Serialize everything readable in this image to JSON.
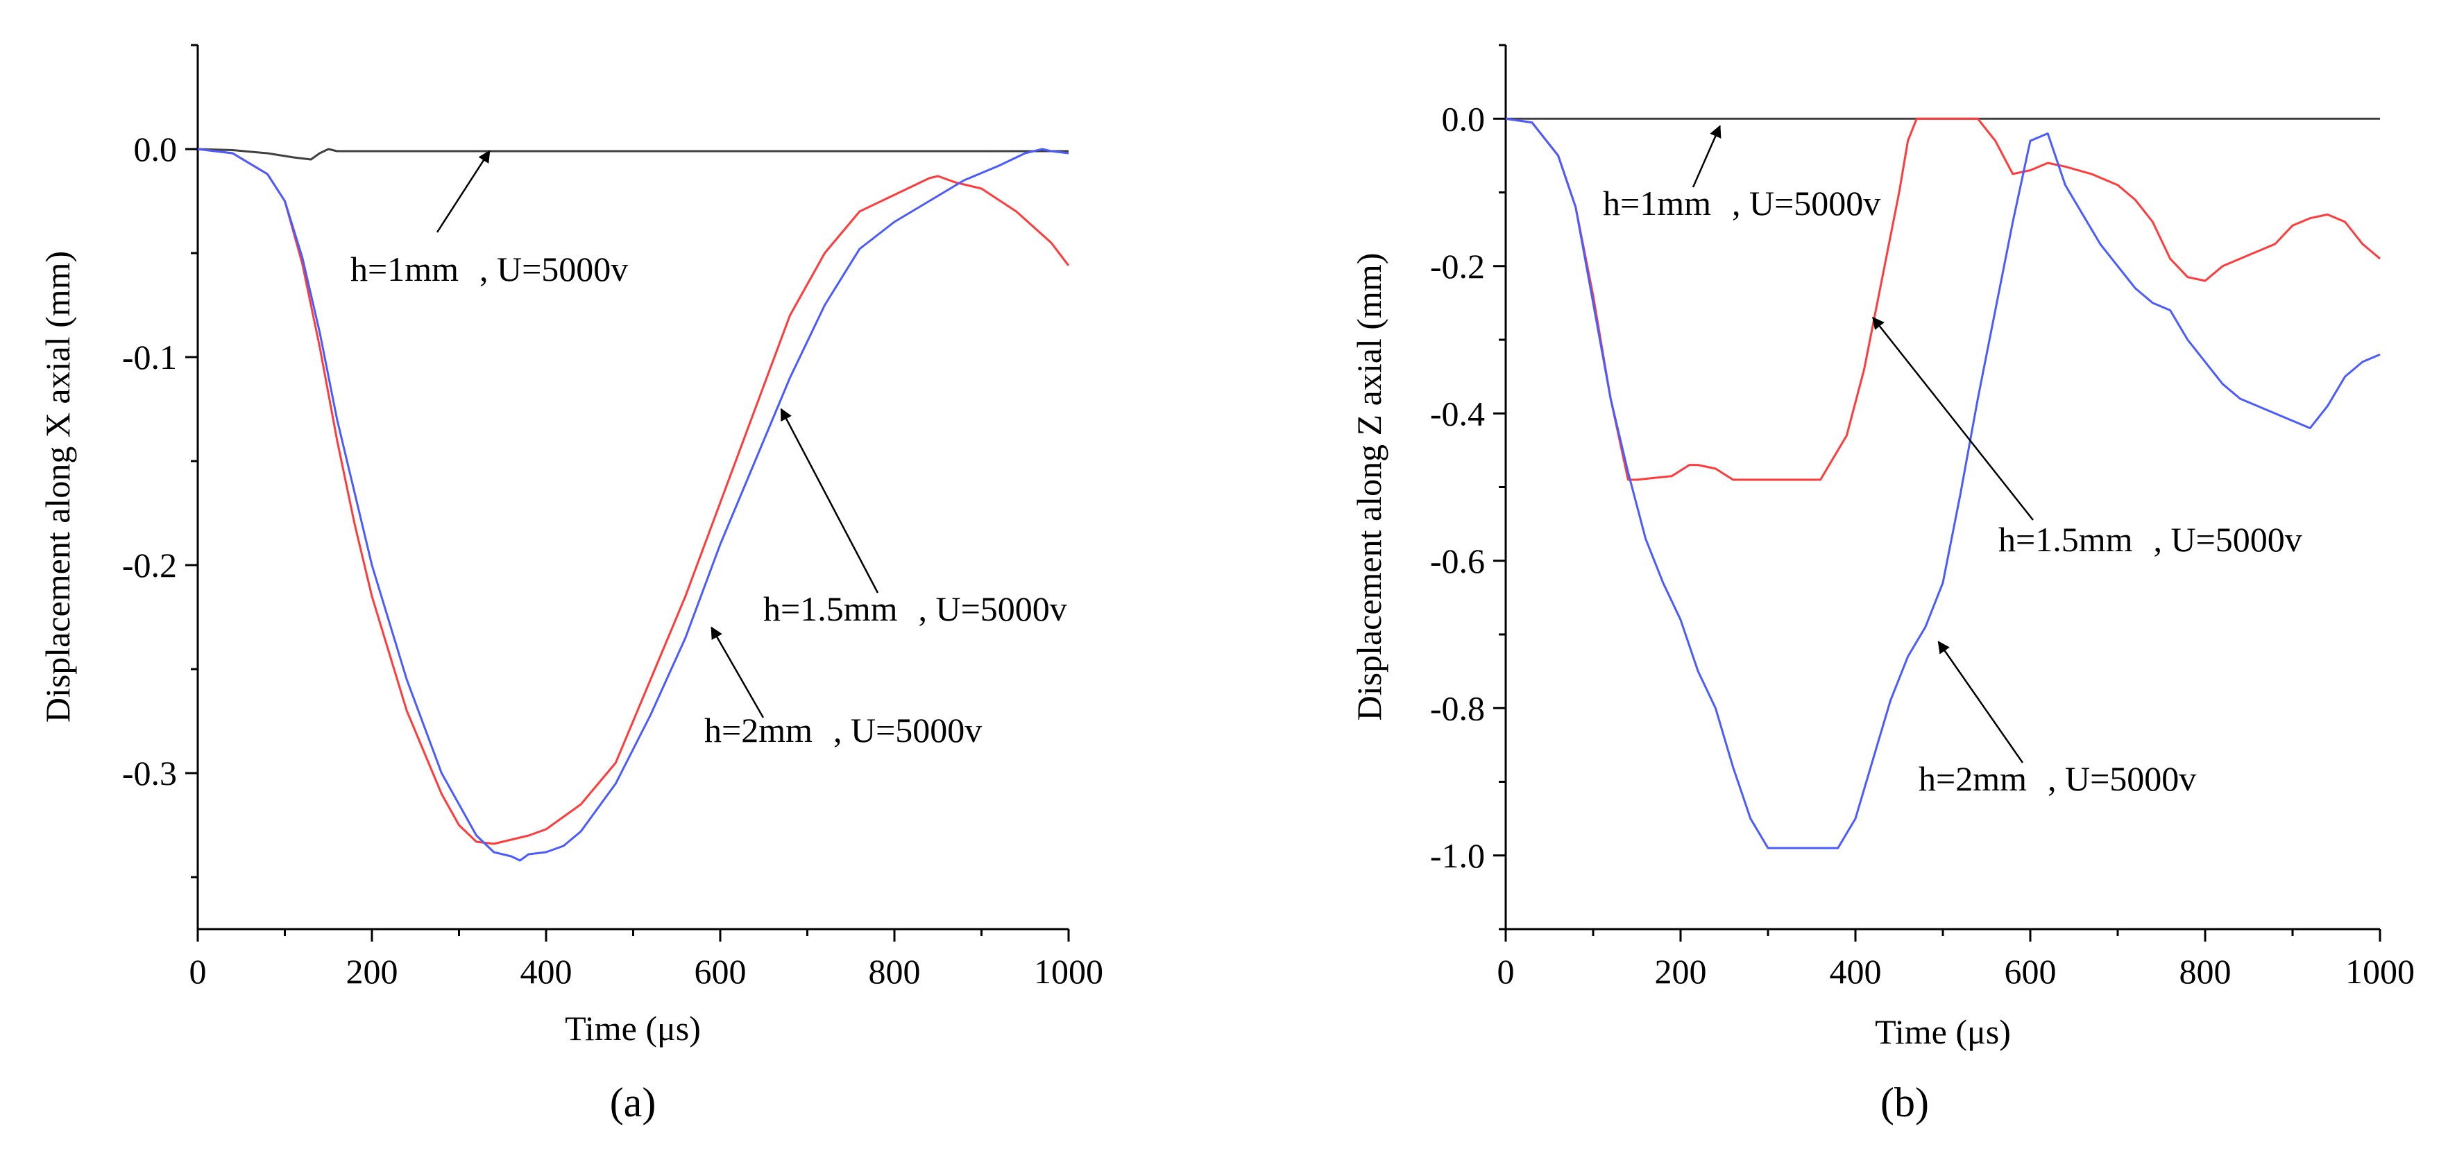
{
  "chart_data": [
    {
      "type": "line",
      "panel_label": "(a)",
      "xlabel": "Time (μs)",
      "ylabel": "Displacement along X axial (mm)",
      "xlim": [
        0,
        1000
      ],
      "ylim": [
        -0.375,
        0.05
      ],
      "xticks": [
        0,
        200,
        400,
        600,
        800,
        1000
      ],
      "xtick_labels": [
        "0",
        "200",
        "400",
        "600",
        "800",
        "1000"
      ],
      "yticks": [
        0.0,
        -0.1,
        -0.2,
        -0.3
      ],
      "ytick_labels": [
        "0.0",
        "-0.1",
        "-0.2",
        "-0.3"
      ],
      "series": [
        {
          "name": "h=1mm",
          "color": "#404040",
          "x": [
            0,
            40,
            80,
            110,
            130,
            140,
            150,
            160,
            200,
            400,
            600,
            800,
            1000
          ],
          "y": [
            0.0,
            -0.0005,
            -0.002,
            -0.004,
            -0.005,
            -0.002,
            0.0,
            -0.001,
            -0.001,
            -0.001,
            -0.001,
            -0.001,
            -0.001
          ]
        },
        {
          "name": "h=1.5mm",
          "color": "#ff3b3b",
          "x": [
            0,
            40,
            80,
            100,
            120,
            140,
            160,
            180,
            200,
            240,
            280,
            300,
            320,
            340,
            360,
            380,
            400,
            440,
            480,
            520,
            560,
            600,
            640,
            680,
            720,
            760,
            800,
            840,
            850,
            870,
            900,
            940,
            980,
            1000
          ],
          "y": [
            0.0,
            -0.002,
            -0.012,
            -0.025,
            -0.055,
            -0.095,
            -0.14,
            -0.18,
            -0.215,
            -0.27,
            -0.31,
            -0.325,
            -0.333,
            -0.334,
            -0.332,
            -0.33,
            -0.327,
            -0.315,
            -0.295,
            -0.255,
            -0.215,
            -0.17,
            -0.125,
            -0.08,
            -0.05,
            -0.03,
            -0.022,
            -0.014,
            -0.013,
            -0.016,
            -0.019,
            -0.03,
            -0.045,
            -0.056
          ]
        },
        {
          "name": "h=2mm",
          "color": "#4a5bff",
          "x": [
            0,
            40,
            80,
            100,
            120,
            140,
            160,
            180,
            200,
            240,
            280,
            320,
            340,
            360,
            370,
            380,
            400,
            420,
            440,
            480,
            520,
            560,
            600,
            640,
            680,
            720,
            760,
            800,
            840,
            880,
            920,
            950,
            970,
            980,
            1000
          ],
          "y": [
            0.0,
            -0.002,
            -0.012,
            -0.025,
            -0.052,
            -0.088,
            -0.13,
            -0.165,
            -0.2,
            -0.255,
            -0.3,
            -0.33,
            -0.338,
            -0.34,
            -0.342,
            -0.339,
            -0.338,
            -0.335,
            -0.328,
            -0.305,
            -0.272,
            -0.235,
            -0.19,
            -0.15,
            -0.11,
            -0.075,
            -0.048,
            -0.035,
            -0.025,
            -0.015,
            -0.008,
            -0.002,
            0.0,
            -0.001,
            -0.002
          ]
        }
      ],
      "annotations": [
        {
          "label": "h=1mm",
          "suffix": ", U=5000v",
          "arrow_to_data": [
            335,
            -0.001
          ]
        },
        {
          "label": "h=1.5mm",
          "suffix": ", U=5000v",
          "arrow_to_data": [
            670,
            -0.125
          ]
        },
        {
          "label": "h=2mm",
          "suffix": ", U=5000v",
          "arrow_to_data": [
            590,
            -0.23
          ]
        }
      ]
    },
    {
      "type": "line",
      "panel_label": "(b)",
      "xlabel": "Time (μs)",
      "ylabel": "Displacement along Z axial (mm)",
      "xlim": [
        0,
        1000
      ],
      "ylim": [
        -1.1,
        0.1
      ],
      "xticks": [
        0,
        200,
        400,
        600,
        800,
        1000
      ],
      "xtick_labels": [
        "0",
        "200",
        "400",
        "600",
        "800",
        "1000"
      ],
      "yticks": [
        0.0,
        -0.2,
        -0.4,
        -0.6,
        -0.8,
        -1.0
      ],
      "ytick_labels": [
        "0.0",
        "-0.2",
        "-0.4",
        "-0.6",
        "-0.8",
        "-1.0"
      ],
      "series": [
        {
          "name": "h=1mm",
          "color": "#404040",
          "x": [
            0,
            1000
          ],
          "y": [
            0.0,
            0.0
          ]
        },
        {
          "name": "h=1.5mm",
          "color": "#ff3b3b",
          "x": [
            0,
            30,
            60,
            80,
            100,
            120,
            140,
            150,
            190,
            210,
            220,
            240,
            260,
            300,
            360,
            370,
            390,
            410,
            430,
            450,
            460,
            470,
            500,
            540,
            560,
            580,
            600,
            620,
            640,
            670,
            700,
            720,
            740,
            760,
            780,
            800,
            820,
            840,
            860,
            880,
            900,
            920,
            940,
            960,
            980,
            1000
          ],
          "y": [
            0.0,
            -0.005,
            -0.05,
            -0.12,
            -0.24,
            -0.38,
            -0.49,
            -0.49,
            -0.485,
            -0.47,
            -0.47,
            -0.475,
            -0.49,
            -0.49,
            -0.49,
            -0.47,
            -0.43,
            -0.34,
            -0.22,
            -0.1,
            -0.03,
            0.0,
            0.0,
            0.0,
            -0.03,
            -0.075,
            -0.07,
            -0.06,
            -0.065,
            -0.075,
            -0.09,
            -0.11,
            -0.14,
            -0.19,
            -0.215,
            -0.22,
            -0.2,
            -0.19,
            -0.18,
            -0.17,
            -0.145,
            -0.135,
            -0.13,
            -0.14,
            -0.17,
            -0.19
          ]
        },
        {
          "name": "h=2mm",
          "color": "#4a5bff",
          "x": [
            0,
            30,
            60,
            80,
            100,
            120,
            140,
            160,
            180,
            200,
            220,
            240,
            260,
            280,
            300,
            340,
            380,
            400,
            420,
            440,
            460,
            480,
            500,
            520,
            540,
            560,
            580,
            600,
            620,
            640,
            660,
            680,
            700,
            720,
            740,
            760,
            780,
            800,
            820,
            840,
            860,
            880,
            900,
            920,
            940,
            960,
            980,
            1000
          ],
          "y": [
            0.0,
            -0.005,
            -0.05,
            -0.12,
            -0.25,
            -0.38,
            -0.48,
            -0.57,
            -0.63,
            -0.68,
            -0.75,
            -0.8,
            -0.88,
            -0.95,
            -0.99,
            -0.99,
            -0.99,
            -0.95,
            -0.87,
            -0.79,
            -0.73,
            -0.69,
            -0.63,
            -0.51,
            -0.38,
            -0.26,
            -0.14,
            -0.03,
            -0.02,
            -0.09,
            -0.13,
            -0.17,
            -0.2,
            -0.23,
            -0.25,
            -0.26,
            -0.3,
            -0.33,
            -0.36,
            -0.38,
            -0.39,
            -0.4,
            -0.41,
            -0.42,
            -0.39,
            -0.35,
            -0.33,
            -0.32
          ]
        }
      ],
      "annotations": [
        {
          "label": "h=1mm",
          "suffix": ", U=5000v",
          "arrow_to_data": [
            245,
            -0.01
          ]
        },
        {
          "label": "h=1.5mm",
          "suffix": ", U=5000v",
          "arrow_to_data": [
            420,
            -0.27
          ]
        },
        {
          "label": "h=2mm",
          "suffix": ", U=5000v",
          "arrow_to_data": [
            495,
            -0.71
          ]
        }
      ]
    }
  ]
}
